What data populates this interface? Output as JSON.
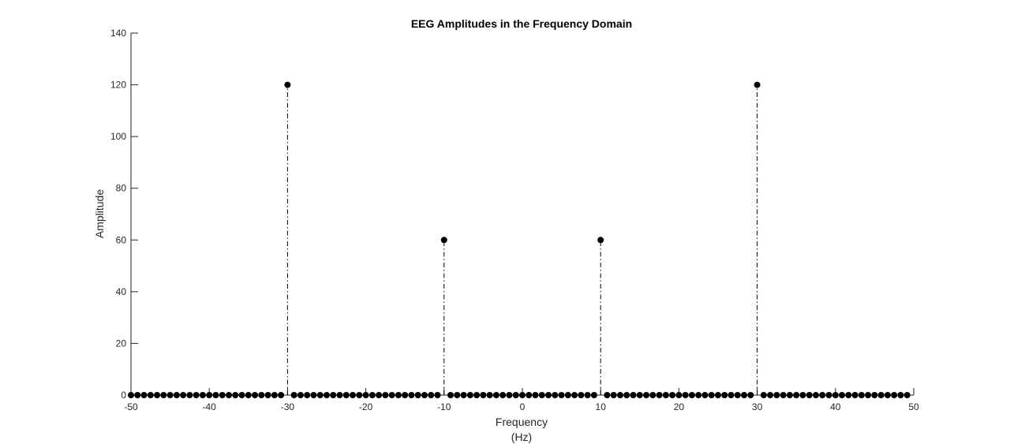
{
  "chart_data": {
    "type": "stem",
    "title": "EEG Amplitudes in the Frequency Domain",
    "xlabel_line1": "Frequency",
    "xlabel_line2": "(Hz)",
    "ylabel": "Amplitude",
    "xlim": [
      -50,
      50
    ],
    "ylim": [
      0,
      140
    ],
    "xticks": [
      -50,
      -40,
      -30,
      -20,
      -10,
      0,
      10,
      20,
      30,
      40,
      50
    ],
    "yticks": [
      0,
      20,
      40,
      60,
      80,
      100,
      120,
      140
    ],
    "x_start": -50,
    "x_step": 0.8333,
    "sample_count": 120,
    "nonzero_points": [
      {
        "x": -30,
        "y": 120
      },
      {
        "x": -10,
        "y": 60
      },
      {
        "x": 10,
        "y": 60
      },
      {
        "x": 30,
        "y": 120
      }
    ],
    "grid": false,
    "line_style": "dash-dot",
    "marker": "filled-circle",
    "color": "#000000"
  }
}
